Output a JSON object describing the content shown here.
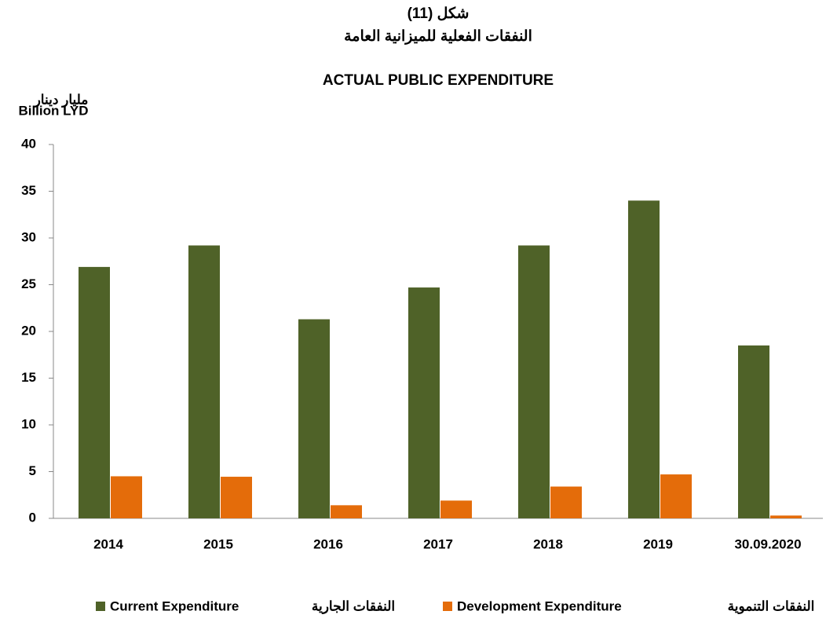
{
  "chart_data": {
    "type": "bar",
    "title": "شكل (11)",
    "subtitle": "النفقات الفعلية للميزانية العامة",
    "title_en": "ACTUAL PUBLIC EXPENDITURE",
    "y_label": "مليار دينار",
    "y_label_en": "Billion LYD",
    "categories": [
      "2014",
      "2015",
      "2016",
      "2017",
      "2018",
      "2019",
      "30.09.2020"
    ],
    "series": [
      {
        "name": "Current Expenditure",
        "name_ar": "النفقات الجارية",
        "color": "#4f6228",
        "values": [
          26.9,
          29.2,
          21.3,
          24.7,
          29.2,
          34.0,
          18.5
        ]
      },
      {
        "name": "Development Expenditure",
        "name_ar": "النفقات التنموية",
        "color": "#e46c0a",
        "values": [
          4.5,
          4.45,
          1.4,
          1.9,
          3.4,
          4.7,
          0.3
        ]
      }
    ],
    "ylim": [
      0,
      40
    ],
    "yticks": [
      0,
      5,
      10,
      15,
      20,
      25,
      30,
      35,
      40
    ],
    "grid": false,
    "legend": "bottom"
  }
}
